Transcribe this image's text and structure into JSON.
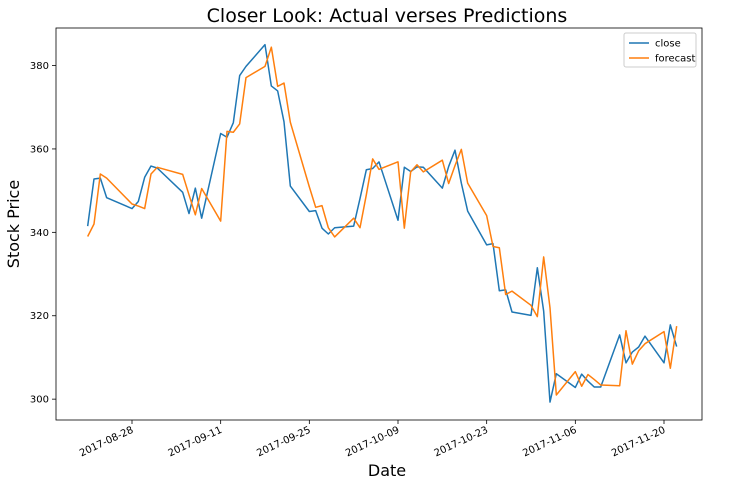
{
  "chart_data": {
    "type": "line",
    "title": "Closer Look: Actual verses Predictions",
    "xlabel": "Date",
    "ylabel": "Stock Price",
    "x_range": [
      "2017-08-16",
      "2017-11-26"
    ],
    "ylim": [
      295,
      389
    ],
    "x_ticks": [
      "2017-08-28",
      "2017-09-11",
      "2017-09-25",
      "2017-10-09",
      "2017-10-23",
      "2017-11-06",
      "2017-11-20"
    ],
    "y_ticks": [
      300,
      320,
      340,
      360,
      380
    ],
    "grid": false,
    "legend": {
      "position": "top-right"
    },
    "series": [
      {
        "name": "close",
        "color": "#1f77b4",
        "points": [
          [
            "2017-08-21",
            341.5
          ],
          [
            "2017-08-22",
            352.8
          ],
          [
            "2017-08-23",
            353.0
          ],
          [
            "2017-08-24",
            348.3
          ],
          [
            "2017-08-28",
            345.7
          ],
          [
            "2017-08-29",
            347.4
          ],
          [
            "2017-08-30",
            353.2
          ],
          [
            "2017-08-31",
            355.9
          ],
          [
            "2017-09-01",
            355.4
          ],
          [
            "2017-09-05",
            349.6
          ],
          [
            "2017-09-06",
            344.5
          ],
          [
            "2017-09-07",
            350.6
          ],
          [
            "2017-09-08",
            343.4
          ],
          [
            "2017-09-11",
            363.7
          ],
          [
            "2017-09-12",
            362.8
          ],
          [
            "2017-09-13",
            366.3
          ],
          [
            "2017-09-14",
            377.6
          ],
          [
            "2017-09-15",
            379.8
          ],
          [
            "2017-09-18",
            385.0
          ],
          [
            "2017-09-19",
            375.1
          ],
          [
            "2017-09-20",
            373.9
          ],
          [
            "2017-09-21",
            366.5
          ],
          [
            "2017-09-22",
            351.1
          ],
          [
            "2017-09-25",
            345.0
          ],
          [
            "2017-09-26",
            345.2
          ],
          [
            "2017-09-27",
            341.0
          ],
          [
            "2017-09-28",
            339.6
          ],
          [
            "2017-09-29",
            341.1
          ],
          [
            "2017-10-02",
            341.5
          ],
          [
            "2017-10-03",
            348.1
          ],
          [
            "2017-10-04",
            355.0
          ],
          [
            "2017-10-05",
            355.3
          ],
          [
            "2017-10-06",
            356.9
          ],
          [
            "2017-10-09",
            342.9
          ],
          [
            "2017-10-10",
            355.6
          ],
          [
            "2017-10-11",
            354.6
          ],
          [
            "2017-10-12",
            355.7
          ],
          [
            "2017-10-13",
            355.6
          ],
          [
            "2017-10-16",
            350.6
          ],
          [
            "2017-10-17",
            355.8
          ],
          [
            "2017-10-18",
            359.7
          ],
          [
            "2017-10-19",
            351.8
          ],
          [
            "2017-10-20",
            345.1
          ],
          [
            "2017-10-23",
            337.0
          ],
          [
            "2017-10-24",
            337.3
          ],
          [
            "2017-10-25",
            326.0
          ],
          [
            "2017-10-26",
            326.2
          ],
          [
            "2017-10-27",
            320.9
          ],
          [
            "2017-10-30",
            320.1
          ],
          [
            "2017-10-31",
            331.5
          ],
          [
            "2017-11-01",
            321.1
          ],
          [
            "2017-11-02",
            299.3
          ],
          [
            "2017-11-03",
            306.1
          ],
          [
            "2017-11-06",
            302.8
          ],
          [
            "2017-11-07",
            306.0
          ],
          [
            "2017-11-08",
            304.3
          ],
          [
            "2017-11-09",
            302.9
          ],
          [
            "2017-11-10",
            302.9
          ],
          [
            "2017-11-13",
            315.4
          ],
          [
            "2017-11-14",
            308.7
          ],
          [
            "2017-11-15",
            311.3
          ],
          [
            "2017-11-16",
            312.5
          ],
          [
            "2017-11-17",
            315.1
          ],
          [
            "2017-11-20",
            308.7
          ],
          [
            "2017-11-21",
            317.8
          ],
          [
            "2017-11-22",
            312.6
          ]
        ]
      },
      {
        "name": "forecast",
        "color": "#ff7f0e",
        "points": [
          [
            "2017-08-21",
            339.0
          ],
          [
            "2017-08-22",
            342.0
          ],
          [
            "2017-08-23",
            354.0
          ],
          [
            "2017-08-24",
            353.0
          ],
          [
            "2017-08-28",
            346.8
          ],
          [
            "2017-08-29",
            346.3
          ],
          [
            "2017-08-30",
            345.7
          ],
          [
            "2017-08-31",
            354.0
          ],
          [
            "2017-09-01",
            355.6
          ],
          [
            "2017-09-05",
            353.9
          ],
          [
            "2017-09-06",
            349.0
          ],
          [
            "2017-09-07",
            344.2
          ],
          [
            "2017-09-08",
            350.5
          ],
          [
            "2017-09-11",
            342.7
          ],
          [
            "2017-09-12",
            364.2
          ],
          [
            "2017-09-13",
            364.0
          ],
          [
            "2017-09-14",
            366.0
          ],
          [
            "2017-09-15",
            377.1
          ],
          [
            "2017-09-18",
            379.8
          ],
          [
            "2017-09-19",
            384.4
          ],
          [
            "2017-09-20",
            375.0
          ],
          [
            "2017-09-21",
            375.8
          ],
          [
            "2017-09-22",
            366.4
          ],
          [
            "2017-09-25",
            350.9
          ],
          [
            "2017-09-26",
            346.0
          ],
          [
            "2017-09-27",
            346.4
          ],
          [
            "2017-09-28",
            341.1
          ],
          [
            "2017-09-29",
            338.9
          ],
          [
            "2017-10-02",
            343.4
          ],
          [
            "2017-10-03",
            341.1
          ],
          [
            "2017-10-04",
            349.0
          ],
          [
            "2017-10-05",
            357.6
          ],
          [
            "2017-10-06",
            355.1
          ],
          [
            "2017-10-09",
            356.9
          ],
          [
            "2017-10-10",
            341.0
          ],
          [
            "2017-10-11",
            354.5
          ],
          [
            "2017-10-12",
            356.2
          ],
          [
            "2017-10-13",
            354.5
          ],
          [
            "2017-10-16",
            357.3
          ],
          [
            "2017-10-17",
            351.7
          ],
          [
            "2017-10-18",
            356.0
          ],
          [
            "2017-10-19",
            359.9
          ],
          [
            "2017-10-20",
            351.8
          ],
          [
            "2017-10-23",
            344.0
          ],
          [
            "2017-10-24",
            336.6
          ],
          [
            "2017-10-25",
            336.3
          ],
          [
            "2017-10-26",
            325.1
          ],
          [
            "2017-10-27",
            325.9
          ],
          [
            "2017-10-30",
            322.5
          ],
          [
            "2017-10-31",
            319.8
          ],
          [
            "2017-11-01",
            334.1
          ],
          [
            "2017-11-02",
            321.9
          ],
          [
            "2017-11-03",
            301.0
          ],
          [
            "2017-11-06",
            306.6
          ],
          [
            "2017-11-07",
            303.1
          ],
          [
            "2017-11-08",
            305.9
          ],
          [
            "2017-11-09",
            304.7
          ],
          [
            "2017-11-10",
            303.4
          ],
          [
            "2017-11-13",
            303.2
          ],
          [
            "2017-11-14",
            316.4
          ],
          [
            "2017-11-15",
            308.4
          ],
          [
            "2017-11-16",
            311.6
          ],
          [
            "2017-11-17",
            313.3
          ],
          [
            "2017-11-20",
            316.2
          ],
          [
            "2017-11-21",
            307.4
          ],
          [
            "2017-11-22",
            317.5
          ]
        ]
      }
    ]
  }
}
